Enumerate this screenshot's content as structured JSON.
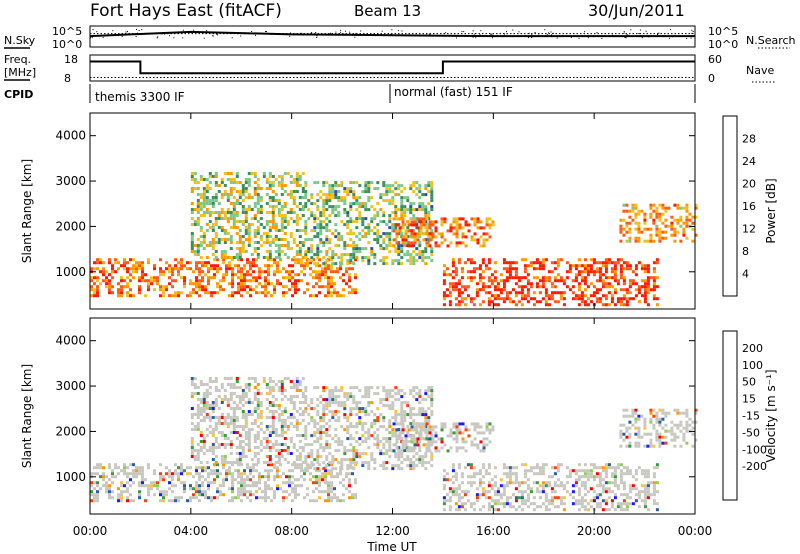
{
  "header": {
    "station": "Fort Hays East (fitACF)",
    "beam": "Beam 13",
    "date": "30/Jun/2011"
  },
  "panels": {
    "nsky_label": "N.Sky",
    "nsearch_label": "N.Search",
    "noise_ticks_left": [
      "10^5",
      "10^0"
    ],
    "noise_ticks_right": [
      "10^5",
      "10^0"
    ],
    "freq_label_1": "Freq.",
    "freq_label_2": "[MHz]",
    "freq_ticks": [
      "18",
      "8"
    ],
    "nave_label": "Nave",
    "nave_ticks": [
      "60",
      "0"
    ],
    "cpid_label": "CPID",
    "cpid_segments": [
      "themis 3300 IF",
      "normal (fast) 151 IF"
    ]
  },
  "colors": {
    "power_scale": [
      "#1a1aff",
      "#2f4fa8",
      "#3a8f5a",
      "#7bc88a",
      "#f0c020",
      "#ff9900",
      "#ff5a1a",
      "#ff1a00"
    ],
    "velocity_scale": [
      "#1a1aff",
      "#2a5fa0",
      "#3e9a3e",
      "#8fd14f",
      "#c8c8c0",
      "#c8c8c0",
      "#ffc040",
      "#ff9900",
      "#ff4000",
      "#ff0000"
    ]
  },
  "chart_data": [
    {
      "type": "line",
      "name": "noise",
      "series": [
        {
          "name": "N.Sky",
          "x_hours": [
            0,
            2,
            4,
            6,
            8,
            10,
            12,
            14,
            16,
            18,
            20,
            22,
            24
          ],
          "values_log10": [
            2.6,
            3.1,
            3.6,
            3.3,
            3.0,
            2.9,
            2.8,
            2.7,
            2.6,
            2.6,
            2.6,
            2.6,
            2.6
          ]
        },
        {
          "name": "N.Search",
          "x_hours": [
            0,
            24
          ],
          "values_log10": [
            3.2,
            3.2
          ]
        }
      ],
      "ylim_log10": [
        0,
        5
      ]
    },
    {
      "type": "line",
      "name": "frequency",
      "series": [
        {
          "name": "Freq. [MHz]",
          "x_hours": [
            0,
            2,
            2,
            14,
            14,
            24
          ],
          "values": [
            15.5,
            15.5,
            11,
            11,
            15.5,
            15.5
          ]
        },
        {
          "name": "Nave",
          "x_hours": [
            0,
            24
          ],
          "values": [
            8,
            8
          ]
        }
      ],
      "ylim": [
        8,
        18
      ],
      "ylim_right": [
        0,
        60
      ]
    },
    {
      "type": "heatmap",
      "name": "power",
      "ylabel": "Slant Range [km]",
      "yticks": [
        1000,
        2000,
        3000,
        4000
      ],
      "ylim": [
        180,
        4500
      ],
      "colorbar_label": "Power [dB]",
      "colorbar_ticks": [
        4,
        8,
        12,
        16,
        20,
        24,
        28
      ],
      "clim": [
        0,
        32
      ],
      "features": [
        {
          "x_start": 0.0,
          "x_end": 10.5,
          "r_start": 500,
          "r_end": 1300,
          "level": 24
        },
        {
          "x_start": 4.0,
          "x_end": 8.5,
          "r_start": 1300,
          "r_end": 3200,
          "level": 16
        },
        {
          "x_start": 8.5,
          "x_end": 13.5,
          "r_start": 1200,
          "r_end": 3000,
          "level": 14
        },
        {
          "x_start": 12.0,
          "x_end": 16.0,
          "r_start": 1600,
          "r_end": 2200,
          "level": 24
        },
        {
          "x_start": 14.0,
          "x_end": 22.5,
          "r_start": 300,
          "r_end": 1300,
          "level": 28
        },
        {
          "x_start": 21.0,
          "x_end": 24.0,
          "r_start": 1700,
          "r_end": 2500,
          "level": 22
        }
      ]
    },
    {
      "type": "heatmap",
      "name": "velocity",
      "xlabel": "Time UT",
      "ylabel": "Slant Range [km]",
      "yticks": [
        1000,
        2000,
        3000,
        4000
      ],
      "ylim": [
        180,
        4500
      ],
      "xticks": [
        "00:00",
        "04:00",
        "08:00",
        "12:00",
        "16:00",
        "20:00",
        "00:00"
      ],
      "xlim_hours": [
        0,
        24
      ],
      "colorbar_label": "Velocity [m s⁻¹]",
      "colorbar_ticks": [
        "200",
        "100",
        "50",
        "15",
        "-15",
        "-50",
        "-100",
        "-200"
      ],
      "clim": [
        -250,
        250
      ]
    }
  ]
}
